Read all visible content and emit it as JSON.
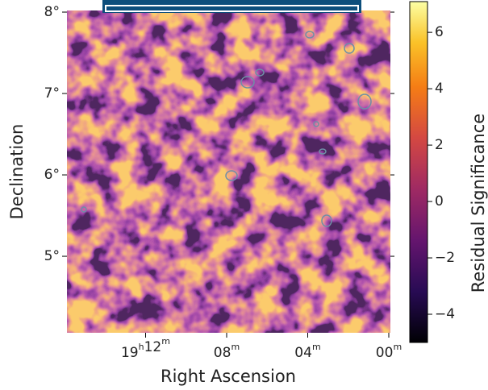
{
  "chart_data": {
    "type": "skymap",
    "xlabel": "Right Ascension",
    "ylabel": "Declination",
    "colorbar_label": "Residual Significance",
    "colormap": "inferno",
    "xlim": [
      288.97,
      284.98
    ],
    "xticks": [
      {
        "value": 288,
        "label": "19h12m"
      },
      {
        "value": 287,
        "label": "08m"
      },
      {
        "value": 286,
        "label": "04m"
      },
      {
        "value": 285,
        "label": "00m"
      }
    ],
    "ylim": [
      4.06,
      8.02
    ],
    "yticks": [
      {
        "value": 5,
        "label": "5°"
      },
      {
        "value": 6,
        "label": "6°"
      },
      {
        "value": 7,
        "label": "7°"
      },
      {
        "value": 8,
        "label": "8°"
      }
    ],
    "clim": [
      -5,
      7.09
    ],
    "cticks": [
      {
        "value": -4,
        "label": "−4"
      },
      {
        "value": -2,
        "label": "−2"
      },
      0,
      2,
      4,
      6
    ]
  }
}
